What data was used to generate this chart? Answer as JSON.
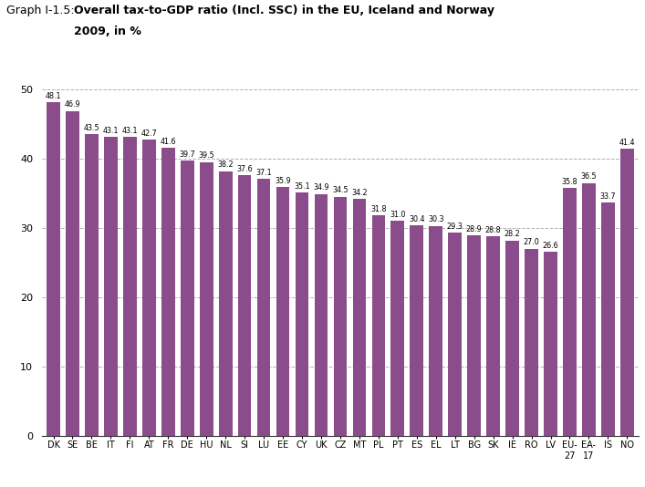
{
  "categories": [
    "DK",
    "SE",
    "BE",
    "IT",
    "FI",
    "AT",
    "FR",
    "DE",
    "HU",
    "NL",
    "SI",
    "LU",
    "EE",
    "CY",
    "UK",
    "CZ",
    "MT",
    "PL",
    "PT",
    "ES",
    "EL",
    "LT",
    "BG",
    "SK",
    "IE",
    "RO",
    "LV",
    "EU-\n27",
    "EA-\n17",
    "IS",
    "NO"
  ],
  "values": [
    48.1,
    46.9,
    43.5,
    43.1,
    43.1,
    42.7,
    41.6,
    39.7,
    39.5,
    38.2,
    37.6,
    37.1,
    35.9,
    35.1,
    34.9,
    34.5,
    34.2,
    31.8,
    31.0,
    30.4,
    30.3,
    29.3,
    28.9,
    28.8,
    28.2,
    27.0,
    26.6,
    35.8,
    36.5,
    33.7,
    41.4
  ],
  "bar_color": "#8B4C8C",
  "title_label": "Graph I-1.5:",
  "title_text": "Overall tax-to-GDP ratio (Incl. SSC) in the EU, Iceland and Norway",
  "title_subtitle": "2009, in %",
  "ylim": [
    0,
    52
  ],
  "yticks": [
    0,
    10,
    20,
    30,
    40,
    50
  ],
  "grid_color": "#b0b0b0",
  "value_fontsize": 5.8,
  "label_fontsize": 7.0,
  "bar_width": 0.7
}
